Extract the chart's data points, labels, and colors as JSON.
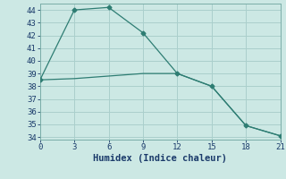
{
  "line1_x": [
    0,
    3,
    6,
    9,
    12,
    15,
    18,
    21
  ],
  "line1_y": [
    38.5,
    44.0,
    44.2,
    42.2,
    39.0,
    38.0,
    34.9,
    34.1
  ],
  "line2_x": [
    0,
    3,
    6,
    9,
    12,
    15,
    18,
    21
  ],
  "line2_y": [
    38.5,
    38.6,
    38.8,
    39.0,
    39.0,
    38.0,
    34.9,
    34.1
  ],
  "color": "#2e7d73",
  "bg_color": "#cce8e4",
  "grid_color": "#aacfcc",
  "xlabel": "Humidex (Indice chaleur)",
  "xlim": [
    0,
    21
  ],
  "ylim": [
    33.8,
    44.5
  ],
  "xticks": [
    0,
    3,
    6,
    9,
    12,
    15,
    18,
    21
  ],
  "yticks": [
    34,
    35,
    36,
    37,
    38,
    39,
    40,
    41,
    42,
    43,
    44
  ],
  "font_color": "#1a3a6a",
  "tick_fontsize": 6.5,
  "label_fontsize": 7.5
}
